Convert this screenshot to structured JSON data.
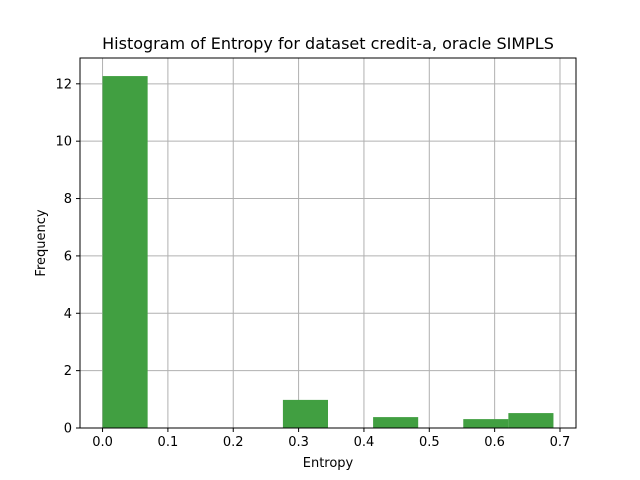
{
  "chart_data": {
    "type": "bar",
    "title": "Histogram of Entropy for dataset credit-a, oracle SIMPLS",
    "xlabel": "Entropy",
    "ylabel": "Frequency",
    "xlim": [
      -0.0345,
      0.7245
    ],
    "ylim": [
      0,
      12.9
    ],
    "xticks": [
      0.0,
      0.1,
      0.2,
      0.3,
      0.4,
      0.5,
      0.6,
      0.7
    ],
    "xtick_labels": [
      "0.0",
      "0.1",
      "0.2",
      "0.3",
      "0.4",
      "0.5",
      "0.6",
      "0.7"
    ],
    "yticks": [
      0,
      2,
      4,
      6,
      8,
      10,
      12
    ],
    "ytick_labels": [
      "0",
      "2",
      "4",
      "6",
      "8",
      "10",
      "12"
    ],
    "grid": true,
    "bar_color": "#419f41",
    "bins": [
      {
        "start": 0.0,
        "end": 0.069,
        "value": 12.27
      },
      {
        "start": 0.069,
        "end": 0.138,
        "value": 0
      },
      {
        "start": 0.138,
        "end": 0.207,
        "value": 0
      },
      {
        "start": 0.207,
        "end": 0.276,
        "value": 0
      },
      {
        "start": 0.276,
        "end": 0.345,
        "value": 0.98
      },
      {
        "start": 0.345,
        "end": 0.414,
        "value": 0
      },
      {
        "start": 0.414,
        "end": 0.483,
        "value": 0.38
      },
      {
        "start": 0.483,
        "end": 0.552,
        "value": 0
      },
      {
        "start": 0.552,
        "end": 0.621,
        "value": 0.31
      },
      {
        "start": 0.621,
        "end": 0.69,
        "value": 0.52
      }
    ]
  }
}
